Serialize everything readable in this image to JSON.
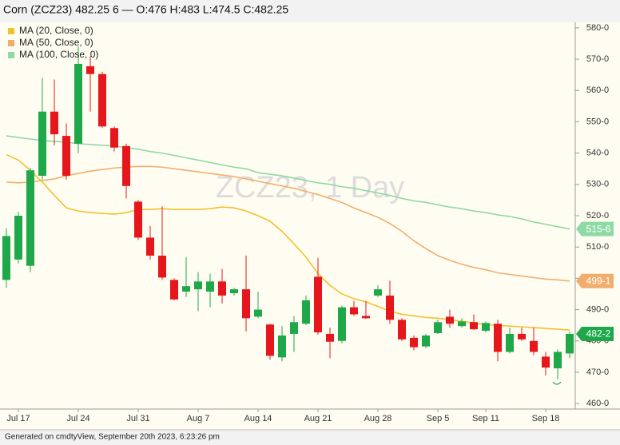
{
  "chart_data": {
    "type": "candlestick",
    "title": "Corn (ZCZ23) 482.25 6 — O:476 H:483 L:474.5 C:482.25",
    "watermark": "ZCZ23, 1 Day",
    "categories": [
      null,
      "Jul 17",
      null,
      null,
      null,
      null,
      "Jul 24",
      null,
      null,
      null,
      null,
      "Jul 31",
      null,
      null,
      null,
      null,
      "Aug 7",
      null,
      null,
      null,
      null,
      "Aug 14",
      null,
      null,
      null,
      null,
      "Aug 21",
      null,
      null,
      null,
      null,
      "Aug 28",
      null,
      null,
      null,
      null,
      "Sep 5",
      null,
      null,
      null,
      "Sep 11",
      null,
      null,
      null,
      null,
      "Sep 18",
      null,
      null
    ],
    "ohlc": {
      "up_color": "#1ea84a",
      "down_color": "#e5171c",
      "last_label": "482-2",
      "open": [
        499.5,
        506,
        504,
        532.75,
        553.25,
        545.5,
        543,
        567.75,
        565.25,
        548,
        542.25,
        524.5,
        513,
        507.25,
        499.5,
        495.75,
        496.5,
        495.75,
        499,
        495.25,
        496.5,
        487.75,
        485.25,
        474.75,
        482.25,
        485.5,
        500.5,
        482.25,
        480,
        490.75,
        488,
        494.5,
        494.5,
        486.75,
        481,
        478.25,
        482.5,
        487.75,
        484.75,
        486,
        483.25,
        485.5,
        476.5,
        482.25,
        480,
        475,
        471.25,
        476
      ],
      "high": [
        516,
        521.25,
        535.25,
        564,
        563.5,
        549.5,
        574,
        571,
        566,
        548.5,
        543,
        525,
        516.75,
        523,
        500,
        506.75,
        502,
        501.5,
        503,
        497,
        507.25,
        495.75,
        485.5,
        484.75,
        488,
        494.5,
        506.5,
        484.25,
        491.25,
        492.75,
        492.75,
        497.75,
        499.25,
        487.25,
        481.75,
        482.25,
        486.75,
        490,
        487.25,
        488.5,
        486.25,
        486.75,
        484.25,
        484.25,
        484.25,
        476.5,
        477.25,
        483
      ],
      "low": [
        497,
        504.75,
        502,
        531.5,
        542.5,
        531.5,
        540,
        553.25,
        548,
        540.5,
        525.5,
        512.25,
        506,
        499.5,
        493,
        494,
        489.5,
        490.75,
        492,
        494.5,
        483,
        487.25,
        474,
        473.5,
        476.5,
        485,
        482,
        474.5,
        479.25,
        488,
        487,
        494,
        485.5,
        480,
        477,
        477.75,
        482.25,
        484.25,
        484.25,
        483.5,
        482.75,
        473.5,
        476,
        480,
        475.5,
        469,
        467.75,
        474.5
      ],
      "close": [
        513.5,
        520,
        534.5,
        553.25,
        546,
        532.75,
        568.5,
        565.25,
        548.5,
        541.75,
        529.5,
        513,
        507.25,
        500.25,
        493.25,
        497.5,
        499,
        499,
        494.5,
        496.5,
        487.25,
        490,
        475.25,
        481.75,
        486,
        493,
        482.75,
        479.75,
        490.75,
        488.5,
        487.25,
        496.5,
        486.75,
        480.5,
        478,
        481.75,
        486,
        485.5,
        486.25,
        483.75,
        485.75,
        476.5,
        482.25,
        480.5,
        476.5,
        471.5,
        476.5,
        482.25
      ]
    },
    "series": [
      {
        "name": "MA (20, Close, 0)",
        "color": "#f2c12e",
        "values": [
          539.5,
          537.75,
          534.5,
          530.75,
          526.5,
          522.5,
          521.5,
          521,
          520.75,
          520.5,
          521,
          522,
          522,
          522.25,
          522,
          522,
          522,
          522.25,
          522.75,
          522.5,
          521.5,
          520,
          518.25,
          515,
          511,
          506.75,
          501.5,
          497.75,
          495,
          493.5,
          492.5,
          491,
          489.5,
          488.5,
          488,
          487.5,
          487.25,
          486.75,
          486.25,
          485.75,
          485.25,
          485,
          484.75,
          484.5,
          484.25,
          484,
          483.75,
          483.5
        ]
      },
      {
        "name": "MA (50, Close, 0)",
        "color": "#f2ad6e",
        "last_label": "499-1",
        "values": [
          530.75,
          530.5,
          530.75,
          531.25,
          531.75,
          532.75,
          533.5,
          534.25,
          534.75,
          535.25,
          535.5,
          535.75,
          535.75,
          535.5,
          535,
          534.5,
          534,
          533.5,
          533,
          532.5,
          531.75,
          531,
          530.25,
          529.5,
          528.75,
          527.75,
          526.75,
          525.5,
          524.25,
          522.5,
          521,
          519.5,
          517.5,
          515,
          512,
          509.5,
          507.25,
          505.75,
          504.5,
          503.5,
          502.75,
          501.75,
          501.25,
          500.75,
          500.25,
          499.75,
          499.5,
          499.125
        ]
      },
      {
        "name": "MA (100, Close, 0)",
        "color": "#8fd9a4",
        "last_label": "515-6",
        "values": [
          545.5,
          545,
          544.5,
          544,
          543.75,
          543.5,
          543,
          542.75,
          542.5,
          542.25,
          541.75,
          541.25,
          540.5,
          540,
          539.25,
          538.5,
          537.75,
          537,
          536.25,
          535.5,
          535,
          533.75,
          533.25,
          532.75,
          532,
          531.25,
          530.5,
          530,
          529.25,
          528.75,
          528,
          527.25,
          526.5,
          525.5,
          524.75,
          524.25,
          523.5,
          522.75,
          522.25,
          521.5,
          521,
          520.25,
          519.75,
          519,
          518,
          517.25,
          516.5,
          515.75
        ]
      }
    ],
    "ylim": [
      458.25,
      581.75
    ],
    "yticks": [
      {
        "value": 460,
        "label": "460-0"
      },
      {
        "value": 470,
        "label": "470-0"
      },
      {
        "value": 480,
        "label": "480-0"
      },
      {
        "value": 490,
        "label": "490-0"
      },
      {
        "value": 500,
        "label": "500-0"
      },
      {
        "value": 510,
        "label": "510-0"
      },
      {
        "value": 520,
        "label": "520-0"
      },
      {
        "value": 530,
        "label": "530-0"
      },
      {
        "value": 540,
        "label": "540-0"
      },
      {
        "value": 550,
        "label": "550-0"
      },
      {
        "value": 560,
        "label": "560-0"
      },
      {
        "value": 570,
        "label": "570-0"
      },
      {
        "value": 580,
        "label": "580-0"
      }
    ]
  },
  "footer": "Generated on cmdtyView, September 20th 2023, 6:23:26 pm"
}
